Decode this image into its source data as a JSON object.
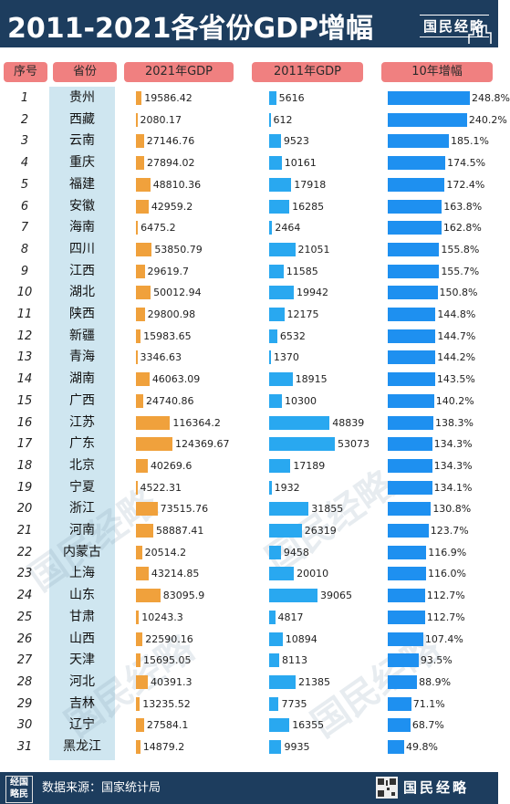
{
  "header": {
    "title": "2011-2021各省份GDP增幅",
    "brand": "国民经略"
  },
  "columns": {
    "rank": "序号",
    "province": "省份",
    "gdp2021": "2021年GDP",
    "gdp2011": "2011年GDP",
    "growth": "10年增幅"
  },
  "footer": {
    "logo": "经国略民",
    "source": "数据来源：国家统计局",
    "brand": "国民经略"
  },
  "watermark": "国民经略",
  "colors": {
    "header_bg": "#1d3d5e",
    "pill": "#f08080",
    "bar_2021": "#f0a13c",
    "bar_2011": "#29a8f0",
    "bar_growth": "#1e90f0",
    "province_col": "#cfe6f0"
  },
  "chart_data": {
    "type": "bar",
    "title": "2011-2021各省份GDP增幅",
    "categories": [
      "贵州",
      "西藏",
      "云南",
      "重庆",
      "福建",
      "安徽",
      "海南",
      "四川",
      "江西",
      "湖北",
      "陕西",
      "新疆",
      "青海",
      "湖南",
      "广西",
      "江苏",
      "广东",
      "北京",
      "宁夏",
      "浙江",
      "河南",
      "内蒙古",
      "上海",
      "山东",
      "甘肃",
      "山西",
      "天津",
      "河北",
      "吉林",
      "辽宁",
      "黑龙江"
    ],
    "ranks": [
      "1",
      "2",
      "3",
      "4",
      "5",
      "6",
      "7",
      "8",
      "9",
      "10",
      "11",
      "12",
      "13",
      "14",
      "15",
      "16",
      "17",
      "18",
      "19",
      "20",
      "21",
      "22",
      "23",
      "24",
      "25",
      "26",
      "27",
      "28",
      "29",
      "30",
      "31"
    ],
    "series": [
      {
        "name": "2021年GDP",
        "values": [
          19586.42,
          2080.17,
          27146.76,
          27894.02,
          48810.36,
          42959.2,
          6475.2,
          53850.79,
          29619.7,
          50012.94,
          29800.98,
          15983.65,
          3346.63,
          46063.09,
          24740.86,
          116364.2,
          124369.67,
          40269.6,
          4522.31,
          73515.76,
          58887.41,
          20514.2,
          43214.85,
          83095.9,
          10243.3,
          22590.16,
          15695.05,
          40391.3,
          13235.52,
          27584.1,
          14879.2
        ],
        "labels": [
          "19586.42",
          "2080.17",
          "27146.76",
          "27894.02",
          "48810.36",
          "42959.2",
          "6475.2",
          "53850.79",
          "29619.7",
          "50012.94",
          "29800.98",
          "15983.65",
          "3346.63",
          "46063.09",
          "24740.86",
          "116364.2",
          "124369.67",
          "40269.6",
          "4522.31",
          "73515.76",
          "58887.41",
          "20514.2",
          "43214.85",
          "83095.9",
          "10243.3",
          "22590.16",
          "15695.05",
          "40391.3",
          "13235.52",
          "27584.1",
          "14879.2"
        ]
      },
      {
        "name": "2011年GDP",
        "values": [
          5616,
          612,
          9523,
          10161,
          17918,
          16285,
          2464,
          21051,
          11585,
          19942,
          12175,
          6532,
          1370,
          18915,
          10300,
          48839,
          53073,
          17189,
          1932,
          31855,
          26319,
          9458,
          20010,
          39065,
          4817,
          10894,
          8113,
          21385,
          7735,
          16355,
          9935
        ],
        "labels": [
          "5616",
          "612",
          "9523",
          "10161",
          "17918",
          "16285",
          "2464",
          "21051",
          "11585",
          "19942",
          "12175",
          "6532",
          "1370",
          "18915",
          "10300",
          "48839",
          "53073",
          "17189",
          "1932",
          "31855",
          "26319",
          "9458",
          "20010",
          "39065",
          "4817",
          "10894",
          "8113",
          "21385",
          "7735",
          "16355",
          "9935"
        ]
      },
      {
        "name": "10年增幅",
        "values": [
          248.8,
          240.2,
          185.1,
          174.5,
          172.4,
          163.8,
          162.8,
          155.8,
          155.7,
          150.8,
          144.8,
          144.7,
          144.2,
          143.5,
          140.2,
          138.3,
          134.3,
          134.3,
          134.1,
          130.8,
          123.7,
          116.9,
          116.0,
          112.7,
          112.7,
          107.4,
          93.5,
          88.9,
          71.1,
          68.7,
          49.8
        ],
        "labels": [
          "248.8%",
          "240.2%",
          "185.1%",
          "174.5%",
          "172.4%",
          "163.8%",
          "162.8%",
          "155.8%",
          "155.7%",
          "150.8%",
          "144.8%",
          "144.7%",
          "144.2%",
          "143.5%",
          "140.2%",
          "138.3%",
          "134.3%",
          "134.3%",
          "134.1%",
          "130.8%",
          "123.7%",
          "116.9%",
          "116.0%",
          "112.7%",
          "112.7%",
          "107.4%",
          "93.5%",
          "88.9%",
          "71.1%",
          "68.7%",
          "49.8%"
        ]
      }
    ]
  }
}
